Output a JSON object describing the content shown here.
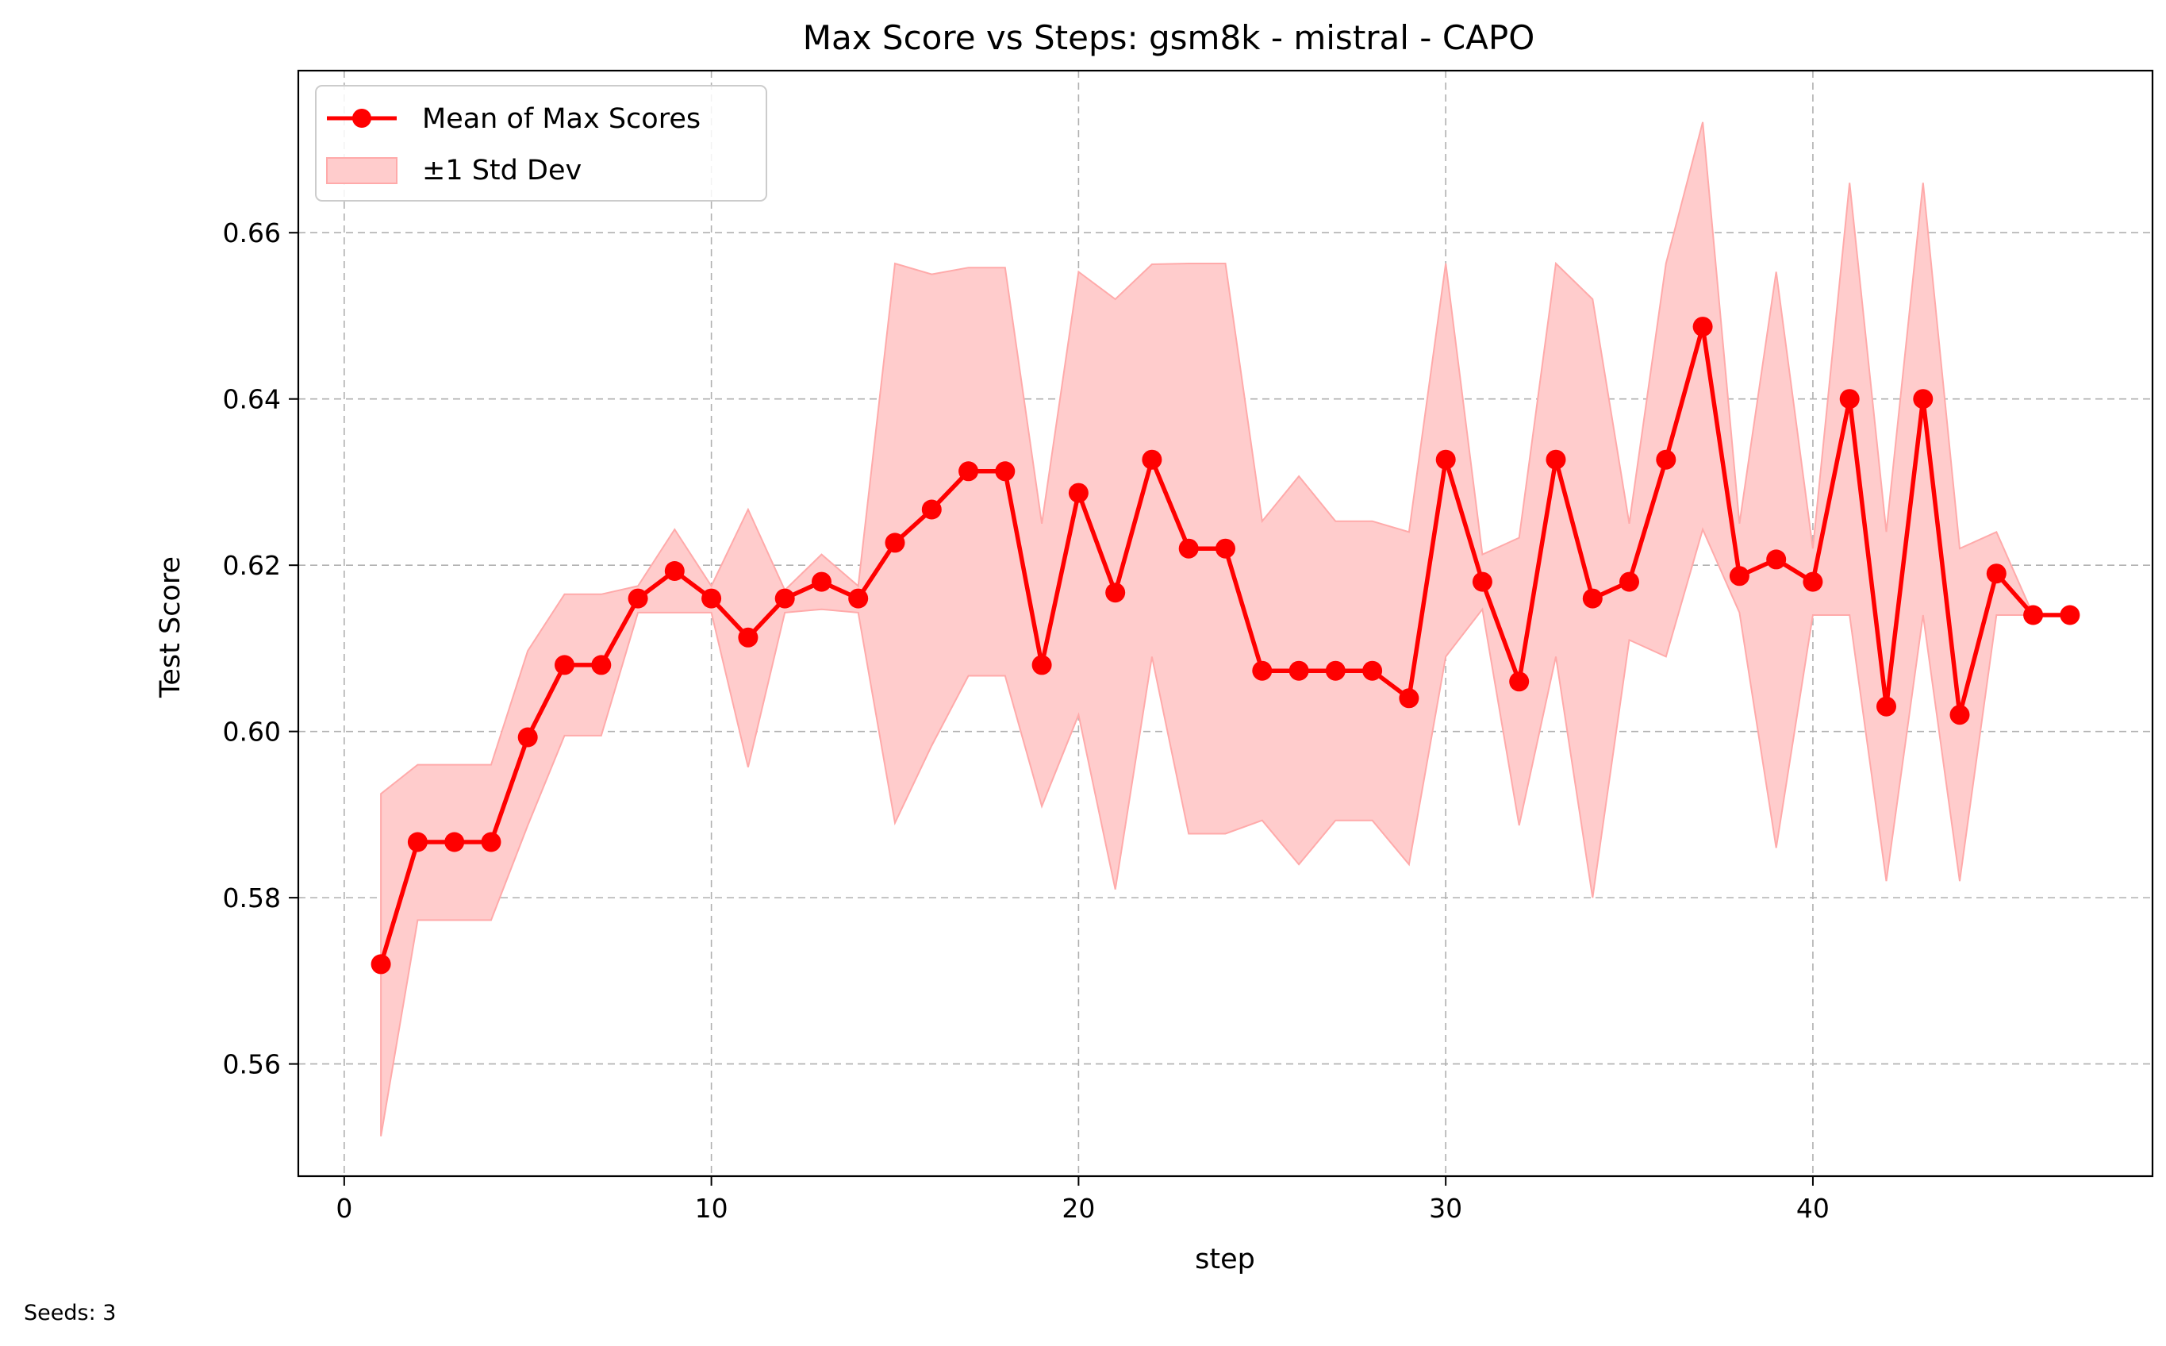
{
  "chart_data": {
    "type": "line",
    "title": "Max Score vs Steps: gsm8k - mistral - CAPO",
    "xlabel": "step",
    "ylabel": "Test Score",
    "xlim": [
      -1.25,
      49.25
    ],
    "ylim": [
      0.5465,
      0.6795
    ],
    "xticks": [
      0,
      10,
      20,
      30,
      40
    ],
    "yticks": [
      0.56,
      0.58,
      0.6,
      0.62,
      0.64,
      0.66
    ],
    "ytick_labels": [
      "0.56",
      "0.58",
      "0.60",
      "0.62",
      "0.64",
      "0.66"
    ],
    "grid": true,
    "legend_position": "upper-left",
    "line_color": "#ff0000",
    "band_color": "#ffcccc",
    "x": [
      1,
      2,
      3,
      4,
      5,
      6,
      7,
      8,
      9,
      10,
      11,
      12,
      13,
      14,
      15,
      16,
      17,
      18,
      19,
      20,
      21,
      22,
      23,
      24,
      25,
      26,
      27,
      28,
      29,
      30,
      31,
      32,
      33,
      34,
      35,
      36,
      37,
      38,
      39,
      40,
      41,
      42,
      43,
      44,
      45,
      46,
      47
    ],
    "series": [
      {
        "name": "Mean of Max Scores",
        "values": [
          0.572,
          0.5867,
          0.5867,
          0.5867,
          0.5993,
          0.608,
          0.608,
          0.616,
          0.6193,
          0.616,
          0.6113,
          0.616,
          0.618,
          0.616,
          0.6227,
          0.6267,
          0.6313,
          0.6313,
          0.608,
          0.6287,
          0.6167,
          0.6327,
          0.622,
          0.622,
          0.6073,
          0.6073,
          0.6073,
          0.6073,
          0.604,
          0.6327,
          0.618,
          0.606,
          0.6327,
          0.616,
          0.618,
          0.6327,
          0.6487,
          0.6187,
          0.6207,
          0.618,
          0.64,
          0.603,
          0.64,
          0.602,
          0.619,
          0.614,
          0.614
        ]
      }
    ],
    "band": {
      "name": "±1 Std Dev",
      "upper": [
        0.5925,
        0.596,
        0.596,
        0.596,
        0.6097,
        0.6165,
        0.6165,
        0.6175,
        0.6243,
        0.6175,
        0.6267,
        0.617,
        0.6213,
        0.6175,
        0.6563,
        0.655,
        0.6558,
        0.6558,
        0.625,
        0.6553,
        0.652,
        0.6562,
        0.6563,
        0.6563,
        0.6253,
        0.6307,
        0.6253,
        0.6253,
        0.624,
        0.6563,
        0.6213,
        0.6233,
        0.6563,
        0.652,
        0.625,
        0.6563,
        0.6733,
        0.625,
        0.6553,
        0.622,
        0.666,
        0.624,
        0.666,
        0.622,
        0.624,
        0.614,
        0.614
      ],
      "lower": [
        0.5513,
        0.5773,
        0.5773,
        0.5773,
        0.5887,
        0.5995,
        0.5995,
        0.6143,
        0.6143,
        0.6143,
        0.5957,
        0.6143,
        0.6147,
        0.6143,
        0.589,
        0.5983,
        0.6067,
        0.6067,
        0.591,
        0.602,
        0.581,
        0.609,
        0.5877,
        0.5877,
        0.5893,
        0.584,
        0.5893,
        0.5893,
        0.584,
        0.609,
        0.6147,
        0.5887,
        0.609,
        0.58,
        0.611,
        0.609,
        0.6243,
        0.6143,
        0.586,
        0.614,
        0.614,
        0.582,
        0.614,
        0.582,
        0.614,
        0.614,
        0.614
      ]
    }
  },
  "footnote": "Seeds: 3"
}
